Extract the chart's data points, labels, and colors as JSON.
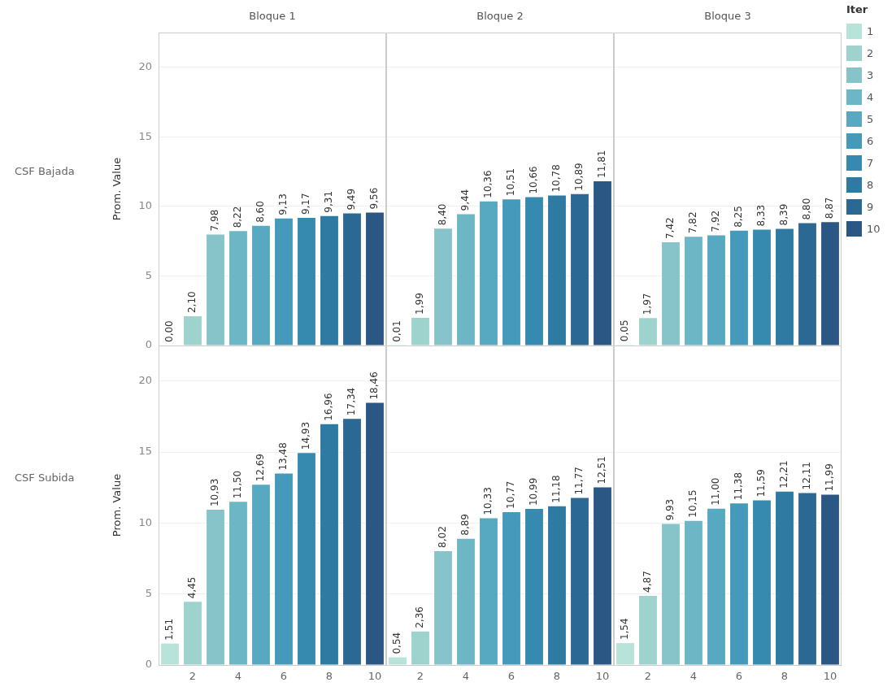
{
  "chart_data": [
    {
      "type": "bar",
      "title": "Bloque 1",
      "ylabel": "Prom. Value",
      "annotations": [
        "CSF Bajada"
      ],
      "xlim": [
        0.5,
        10.5
      ],
      "xticks": [
        2,
        4,
        6,
        8,
        10
      ],
      "ylim": [
        0,
        22.5
      ],
      "yticks": [
        0,
        5,
        10,
        15,
        20
      ],
      "grid": "y",
      "tick_labels": "y",
      "series": [
        {
          "color": "#b7e3d8",
          "x": [
            1
          ],
          "values": [
            0
          ],
          "value_labels": [
            "0,00"
          ]
        },
        {
          "color": "#9dd2cd",
          "x": [
            2
          ],
          "values": [
            2.1
          ],
          "value_labels": [
            "2,10"
          ]
        },
        {
          "color": "#86c4c9",
          "x": [
            3
          ],
          "values": [
            7.98
          ],
          "value_labels": [
            "7,98"
          ]
        },
        {
          "color": "#6db6c5",
          "x": [
            4
          ],
          "values": [
            8.22
          ],
          "value_labels": [
            "8,22"
          ]
        },
        {
          "color": "#57a8c1",
          "x": [
            5
          ],
          "values": [
            8.6
          ],
          "value_labels": [
            "8,60"
          ]
        },
        {
          "color": "#4599ba",
          "x": [
            6
          ],
          "values": [
            9.13
          ],
          "value_labels": [
            "9,13"
          ]
        },
        {
          "color": "#368aaf",
          "x": [
            7
          ],
          "values": [
            9.17
          ],
          "value_labels": [
            "9,17"
          ]
        },
        {
          "color": "#2f7aa2",
          "x": [
            8
          ],
          "values": [
            9.31
          ],
          "value_labels": [
            "9,31"
          ]
        },
        {
          "color": "#2c6894",
          "x": [
            9
          ],
          "values": [
            9.49
          ],
          "value_labels": [
            "9,49"
          ]
        },
        {
          "color": "#2a5783",
          "x": [
            10
          ],
          "values": [
            9.56
          ],
          "value_labels": [
            "9,56"
          ]
        }
      ]
    },
    {
      "type": "bar",
      "title": "Bloque 2",
      "xlim": [
        0.5,
        10.5
      ],
      "xticks": [
        2,
        4,
        6,
        8,
        10
      ],
      "ylim": [
        0,
        22.5
      ],
      "yticks": [
        0,
        5,
        10,
        15,
        20
      ],
      "grid": "y",
      "tick_labels": false,
      "series": [
        {
          "color": "#b7e3d8",
          "x": [
            1
          ],
          "values": [
            0.01
          ],
          "value_labels": [
            "0,01"
          ]
        },
        {
          "color": "#9dd2cd",
          "x": [
            2
          ],
          "values": [
            1.99
          ],
          "value_labels": [
            "1,99"
          ]
        },
        {
          "color": "#86c4c9",
          "x": [
            3
          ],
          "values": [
            8.4
          ],
          "value_labels": [
            "8,40"
          ]
        },
        {
          "color": "#6db6c5",
          "x": [
            4
          ],
          "values": [
            9.44
          ],
          "value_labels": [
            "9,44"
          ]
        },
        {
          "color": "#57a8c1",
          "x": [
            5
          ],
          "values": [
            10.36
          ],
          "value_labels": [
            "10,36"
          ]
        },
        {
          "color": "#4599ba",
          "x": [
            6
          ],
          "values": [
            10.51
          ],
          "value_labels": [
            "10,51"
          ]
        },
        {
          "color": "#368aaf",
          "x": [
            7
          ],
          "values": [
            10.66
          ],
          "value_labels": [
            "10,66"
          ]
        },
        {
          "color": "#2f7aa2",
          "x": [
            8
          ],
          "values": [
            10.78
          ],
          "value_labels": [
            "10,78"
          ]
        },
        {
          "color": "#2c6894",
          "x": [
            9
          ],
          "values": [
            10.89
          ],
          "value_labels": [
            "10,89"
          ]
        },
        {
          "color": "#2a5783",
          "x": [
            10
          ],
          "values": [
            11.81
          ],
          "value_labels": [
            "11,81"
          ]
        }
      ]
    },
    {
      "type": "bar",
      "title": "Bloque 3",
      "legend": "right",
      "legend_title": "Iter",
      "xlim": [
        0.5,
        10.5
      ],
      "xticks": [
        2,
        4,
        6,
        8,
        10
      ],
      "ylim": [
        0,
        22.5
      ],
      "yticks": [
        0,
        5,
        10,
        15,
        20
      ],
      "grid": "y",
      "tick_labels": false,
      "series": [
        {
          "name": "1",
          "color": "#b7e3d8",
          "x": [
            1
          ],
          "values": [
            0.05
          ],
          "value_labels": [
            "0,05"
          ]
        },
        {
          "name": "2",
          "color": "#9dd2cd",
          "x": [
            2
          ],
          "values": [
            1.97
          ],
          "value_labels": [
            "1,97"
          ]
        },
        {
          "name": "3",
          "color": "#86c4c9",
          "x": [
            3
          ],
          "values": [
            7.42
          ],
          "value_labels": [
            "7,42"
          ]
        },
        {
          "name": "4",
          "color": "#6db6c5",
          "x": [
            4
          ],
          "values": [
            7.82
          ],
          "value_labels": [
            "7,82"
          ]
        },
        {
          "name": "5",
          "color": "#57a8c1",
          "x": [
            5
          ],
          "values": [
            7.92
          ],
          "value_labels": [
            "7,92"
          ]
        },
        {
          "name": "6",
          "color": "#4599ba",
          "x": [
            6
          ],
          "values": [
            8.25
          ],
          "value_labels": [
            "8,25"
          ]
        },
        {
          "name": "7",
          "color": "#368aaf",
          "x": [
            7
          ],
          "values": [
            8.33
          ],
          "value_labels": [
            "8,33"
          ]
        },
        {
          "name": "8",
          "color": "#2f7aa2",
          "x": [
            8
          ],
          "values": [
            8.39
          ],
          "value_labels": [
            "8,39"
          ]
        },
        {
          "name": "9",
          "color": "#2c6894",
          "x": [
            9
          ],
          "values": [
            8.8
          ],
          "value_labels": [
            "8,80"
          ]
        },
        {
          "name": "10",
          "color": "#2a5783",
          "x": [
            10
          ],
          "values": [
            8.87
          ],
          "value_labels": [
            "8,87"
          ]
        }
      ]
    },
    {
      "type": "bar",
      "ylabel": "Prom. Value",
      "annotations": [
        "CSF Subida"
      ],
      "xlim": [
        0.5,
        10.5
      ],
      "xticks": [
        2,
        4,
        6,
        8,
        10
      ],
      "ylim": [
        0,
        22.5
      ],
      "yticks": [
        0,
        5,
        10,
        15,
        20
      ],
      "grid": "y",
      "series": [
        {
          "color": "#b7e3d8",
          "x": [
            1
          ],
          "values": [
            1.51
          ],
          "value_labels": [
            "1,51"
          ]
        },
        {
          "color": "#9dd2cd",
          "x": [
            2
          ],
          "values": [
            4.45
          ],
          "value_labels": [
            "4,45"
          ]
        },
        {
          "color": "#86c4c9",
          "x": [
            3
          ],
          "values": [
            10.93
          ],
          "value_labels": [
            "10,93"
          ]
        },
        {
          "color": "#6db6c5",
          "x": [
            4
          ],
          "values": [
            11.5
          ],
          "value_labels": [
            "11,50"
          ]
        },
        {
          "color": "#57a8c1",
          "x": [
            5
          ],
          "values": [
            12.69
          ],
          "value_labels": [
            "12,69"
          ]
        },
        {
          "color": "#4599ba",
          "x": [
            6
          ],
          "values": [
            13.48
          ],
          "value_labels": [
            "13,48"
          ]
        },
        {
          "color": "#368aaf",
          "x": [
            7
          ],
          "values": [
            14.93
          ],
          "value_labels": [
            "14,93"
          ]
        },
        {
          "color": "#2f7aa2",
          "x": [
            8
          ],
          "values": [
            16.96
          ],
          "value_labels": [
            "16,96"
          ]
        },
        {
          "color": "#2c6894",
          "x": [
            9
          ],
          "values": [
            17.34
          ],
          "value_labels": [
            "17,34"
          ]
        },
        {
          "color": "#2a5783",
          "x": [
            10
          ],
          "values": [
            18.46
          ],
          "value_labels": [
            "18,46"
          ]
        }
      ]
    },
    {
      "type": "bar",
      "xlim": [
        0.5,
        10.5
      ],
      "xticks": [
        2,
        4,
        6,
        8,
        10
      ],
      "ylim": [
        0,
        22.5
      ],
      "yticks": [
        0,
        5,
        10,
        15,
        20
      ],
      "grid": "y",
      "tick_labels": "x",
      "series": [
        {
          "color": "#b7e3d8",
          "x": [
            1
          ],
          "values": [
            0.54
          ],
          "value_labels": [
            "0,54"
          ]
        },
        {
          "color": "#9dd2cd",
          "x": [
            2
          ],
          "values": [
            2.36
          ],
          "value_labels": [
            "2,36"
          ]
        },
        {
          "color": "#86c4c9",
          "x": [
            3
          ],
          "values": [
            8.02
          ],
          "value_labels": [
            "8,02"
          ]
        },
        {
          "color": "#6db6c5",
          "x": [
            4
          ],
          "values": [
            8.89
          ],
          "value_labels": [
            "8,89"
          ]
        },
        {
          "color": "#57a8c1",
          "x": [
            5
          ],
          "values": [
            10.33
          ],
          "value_labels": [
            "10,33"
          ]
        },
        {
          "color": "#4599ba",
          "x": [
            6
          ],
          "values": [
            10.77
          ],
          "value_labels": [
            "10,77"
          ]
        },
        {
          "color": "#368aaf",
          "x": [
            7
          ],
          "values": [
            10.99
          ],
          "value_labels": [
            "10,99"
          ]
        },
        {
          "color": "#2f7aa2",
          "x": [
            8
          ],
          "values": [
            11.18
          ],
          "value_labels": [
            "11,18"
          ]
        },
        {
          "color": "#2c6894",
          "x": [
            9
          ],
          "values": [
            11.77
          ],
          "value_labels": [
            "11,77"
          ]
        },
        {
          "color": "#2a5783",
          "x": [
            10
          ],
          "values": [
            12.51
          ],
          "value_labels": [
            "12,51"
          ]
        }
      ]
    },
    {
      "type": "bar",
      "xlim": [
        0.5,
        10.5
      ],
      "xticks": [
        2,
        4,
        6,
        8,
        10
      ],
      "ylim": [
        0,
        22.5
      ],
      "yticks": [
        0,
        5,
        10,
        15,
        20
      ],
      "grid": "y",
      "tick_labels": "x",
      "series": [
        {
          "color": "#b7e3d8",
          "x": [
            1
          ],
          "values": [
            1.54
          ],
          "value_labels": [
            "1,54"
          ]
        },
        {
          "color": "#9dd2cd",
          "x": [
            2
          ],
          "values": [
            4.87
          ],
          "value_labels": [
            "4,87"
          ]
        },
        {
          "color": "#86c4c9",
          "x": [
            3
          ],
          "values": [
            9.93
          ],
          "value_labels": [
            "9,93"
          ]
        },
        {
          "color": "#6db6c5",
          "x": [
            4
          ],
          "values": [
            10.15
          ],
          "value_labels": [
            "10,15"
          ]
        },
        {
          "color": "#57a8c1",
          "x": [
            5
          ],
          "values": [
            11.0
          ],
          "value_labels": [
            "11,00"
          ]
        },
        {
          "color": "#4599ba",
          "x": [
            6
          ],
          "values": [
            11.38
          ],
          "value_labels": [
            "11,38"
          ]
        },
        {
          "color": "#368aaf",
          "x": [
            7
          ],
          "values": [
            11.59
          ],
          "value_labels": [
            "11,59"
          ]
        },
        {
          "color": "#2f7aa2",
          "x": [
            8
          ],
          "values": [
            12.21
          ],
          "value_labels": [
            "12,21"
          ]
        },
        {
          "color": "#2c6894",
          "x": [
            9
          ],
          "values": [
            12.11
          ],
          "value_labels": [
            "12,11"
          ]
        },
        {
          "color": "#2a5783",
          "x": [
            10
          ],
          "values": [
            11.99
          ],
          "value_labels": [
            "11,99"
          ]
        }
      ]
    }
  ]
}
